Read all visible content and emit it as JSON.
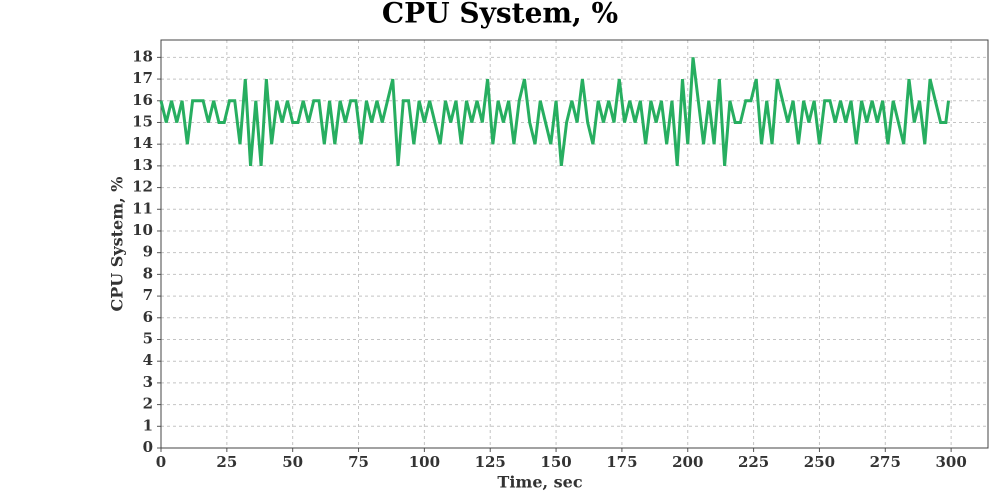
{
  "chart_data": {
    "type": "line",
    "title": "CPU System, %",
    "x_label": "Time, sec",
    "y_label": "CPU System, %",
    "x": [
      0,
      2,
      4,
      6,
      8,
      10,
      12,
      14,
      16,
      18,
      20,
      22,
      24,
      26,
      28,
      30,
      32,
      34,
      36,
      38,
      40,
      42,
      44,
      46,
      48,
      50,
      52,
      54,
      56,
      58,
      60,
      62,
      64,
      66,
      68,
      70,
      72,
      74,
      76,
      78,
      80,
      82,
      84,
      86,
      88,
      90,
      92,
      94,
      96,
      98,
      100,
      102,
      104,
      106,
      108,
      110,
      112,
      114,
      116,
      118,
      120,
      122,
      124,
      126,
      128,
      130,
      132,
      134,
      136,
      138,
      140,
      142,
      144,
      146,
      148,
      150,
      152,
      154,
      156,
      158,
      160,
      162,
      164,
      166,
      168,
      170,
      172,
      174,
      176,
      178,
      180,
      182,
      184,
      186,
      188,
      190,
      192,
      194,
      196,
      198,
      200,
      202,
      204,
      206,
      208,
      210,
      212,
      214,
      216,
      218,
      220,
      222,
      224,
      226,
      228,
      230,
      232,
      234,
      236,
      238,
      240,
      242,
      244,
      246,
      248,
      250,
      252,
      254,
      256,
      258,
      260,
      262,
      264,
      266,
      268,
      270,
      272,
      274,
      276,
      278,
      280,
      282,
      284,
      286,
      288,
      290,
      292,
      294,
      296,
      298,
      299
    ],
    "series": [
      {
        "name": "CPU System",
        "color": "#27ae60",
        "values": [
          16,
          15,
          16,
          15,
          16,
          14,
          16,
          16,
          16,
          15,
          16,
          15,
          15,
          16,
          16,
          14,
          17,
          13,
          16,
          13,
          17,
          14,
          16,
          15,
          16,
          15,
          15,
          16,
          15,
          16,
          16,
          14,
          16,
          14,
          16,
          15,
          16,
          16,
          14,
          16,
          15,
          16,
          15,
          16,
          17,
          13,
          16,
          16,
          14,
          16,
          15,
          16,
          15,
          14,
          16,
          15,
          16,
          14,
          16,
          15,
          16,
          15,
          17,
          14,
          16,
          15,
          16,
          14,
          16,
          17,
          15,
          14,
          16,
          15,
          14,
          16,
          13,
          15,
          16,
          15,
          17,
          15,
          14,
          16,
          15,
          16,
          15,
          17,
          15,
          16,
          15,
          16,
          14,
          16,
          15,
          16,
          14,
          16,
          13,
          17,
          14,
          18,
          16,
          14,
          16,
          14,
          17,
          13,
          16,
          15,
          15,
          16,
          16,
          17,
          14,
          16,
          14,
          17,
          16,
          15,
          16,
          14,
          16,
          15,
          16,
          14,
          16,
          16,
          15,
          16,
          15,
          16,
          14,
          16,
          15,
          16,
          15,
          16,
          14,
          16,
          15,
          14,
          17,
          15,
          16,
          14,
          17,
          16,
          15,
          15,
          16
        ]
      }
    ],
    "xlim": [
      0,
      314
    ],
    "ylim": [
      0,
      18.8
    ],
    "xticks": [
      0,
      25,
      50,
      75,
      100,
      125,
      150,
      175,
      200,
      225,
      250,
      275,
      300
    ],
    "yticks": [
      0,
      1,
      2,
      3,
      4,
      5,
      6,
      7,
      8,
      9,
      10,
      11,
      12,
      13,
      14,
      15,
      16,
      17,
      18
    ],
    "grid": true
  }
}
